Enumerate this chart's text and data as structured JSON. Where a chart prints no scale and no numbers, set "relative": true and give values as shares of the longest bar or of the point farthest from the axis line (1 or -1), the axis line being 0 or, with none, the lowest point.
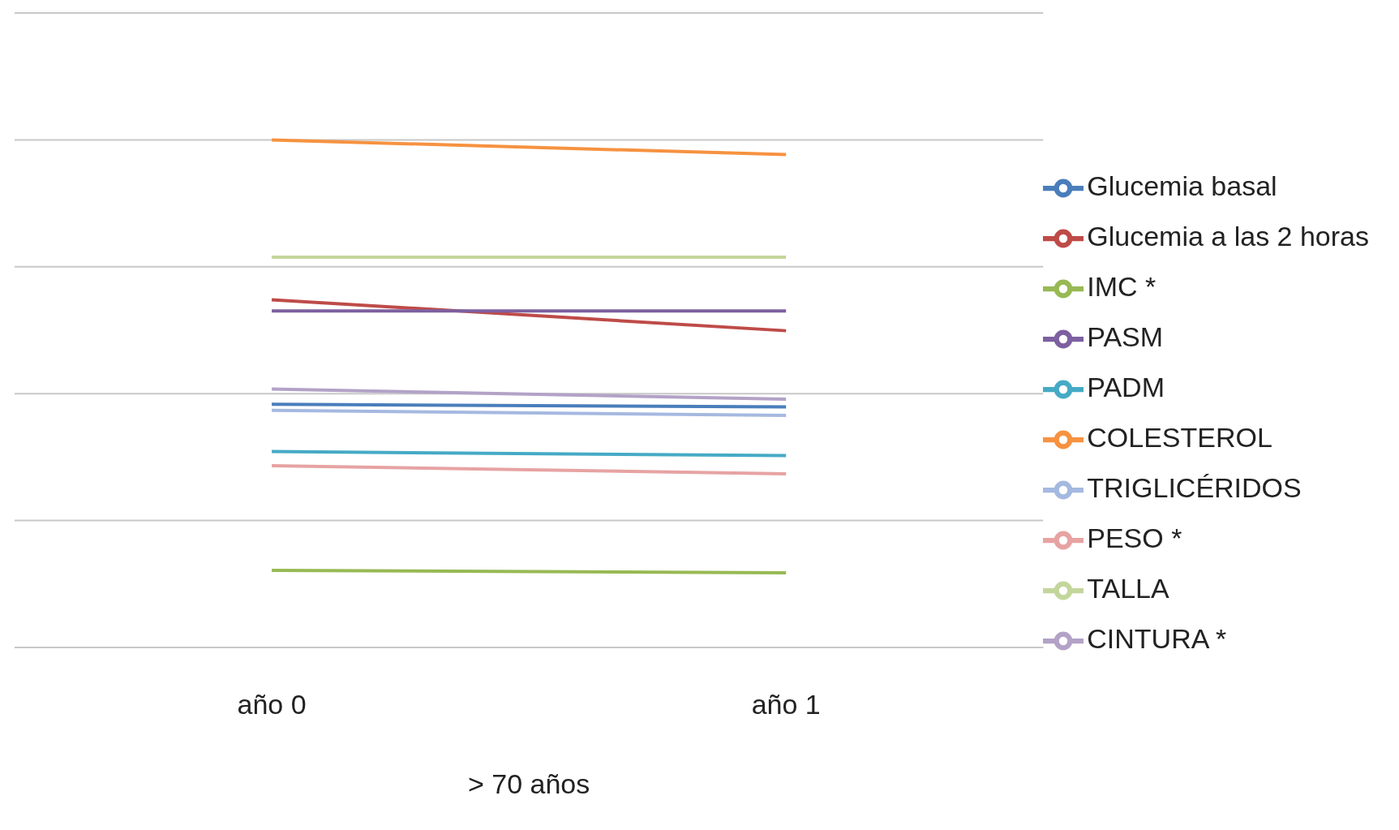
{
  "chart_data": {
    "type": "line",
    "relative": true,
    "categories": [
      "año 0",
      "año 1"
    ],
    "xlabel": "> 70 años",
    "grid": "y",
    "legend": "right",
    "marker": "none",
    "line_style": "solid",
    "series": [
      {
        "name": "Glucemia basal",
        "color": "#4a7ebb",
        "values": [
          0.479,
          0.474
        ]
      },
      {
        "name": "Glucemia a las 2 horas",
        "color": "#be4b48",
        "values": [
          0.685,
          0.624
        ]
      },
      {
        "name": "IMC *",
        "color": "#98b954",
        "values": [
          0.152,
          0.147
        ]
      },
      {
        "name": "PASM",
        "color": "#7d60a0",
        "values": [
          0.663,
          0.663
        ]
      },
      {
        "name": "PADM",
        "color": "#46aac5",
        "values": [
          0.386,
          0.378
        ]
      },
      {
        "name": "COLESTEROL",
        "color": "#f69240",
        "values": [
          1,
          0.971
        ]
      },
      {
        "name": "TRIGLICÉRIDOS",
        "color": "#a5b9e0",
        "values": [
          0.467,
          0.457
        ]
      },
      {
        "name": "PESO *",
        "color": "#e6a3a2",
        "values": [
          0.358,
          0.342
        ]
      },
      {
        "name": "TALLA",
        "color": "#c3d69b",
        "values": [
          0.769,
          0.769
        ]
      },
      {
        "name": "CINTURA *",
        "color": "#b3a2c7",
        "values": [
          0.509,
          0.489
        ]
      }
    ]
  }
}
